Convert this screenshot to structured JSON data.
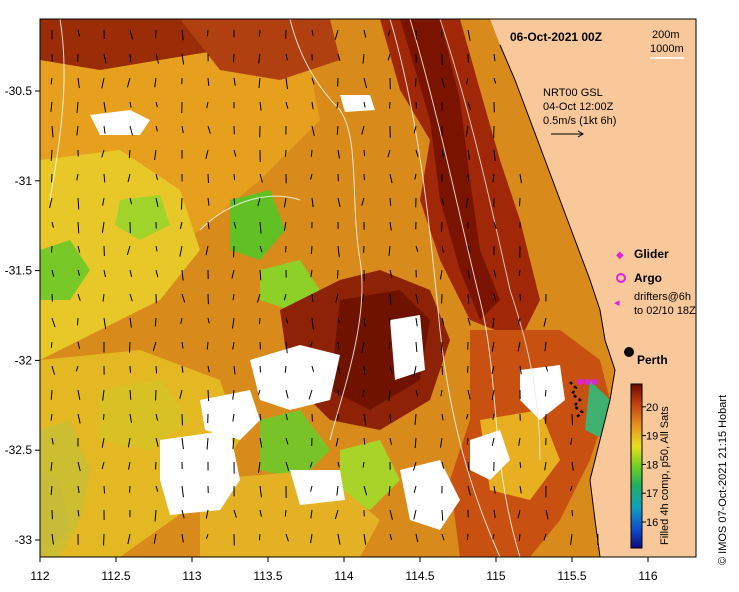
{
  "map": {
    "title": "06-Oct-2021 00Z",
    "depth_legend": [
      "200m",
      "1000m"
    ],
    "current_info": [
      "NRT00 GSL",
      "04-Oct 12:00Z",
      "0.5m/s (1kt 6h)"
    ],
    "legend": {
      "glider": "Glider",
      "argo": "Argo",
      "drifters_line1": "drifters@6h",
      "drifters_line2": "to 02/10 18Z"
    },
    "city": "Perth",
    "credit": "© IMOS 07-Oct-2021 21:15 Hobart",
    "colorbar_caption": "Filled 4h comp, p50, All Sats",
    "colorbar_ticks": [
      "16",
      "17",
      "18",
      "19",
      "20"
    ],
    "x_ticks": [
      "112",
      "112.5",
      "113",
      "113.5",
      "114",
      "114.5",
      "115",
      "115.5",
      "116"
    ],
    "y_ticks": [
      "-30.5",
      "-31",
      "-31.5",
      "-32",
      "-32.5",
      "-33"
    ],
    "colors": {
      "land": "#f8c89a",
      "warm": "#8b1a00",
      "orange": "#d86a10",
      "yellow": "#e8d020",
      "green": "#50c020",
      "teal": "#20a090"
    }
  }
}
